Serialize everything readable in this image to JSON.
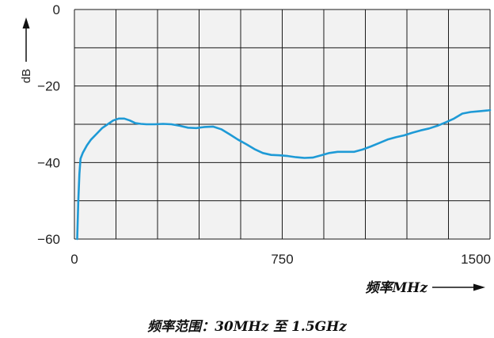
{
  "colors": {
    "plot_bg": "#f2f2f2",
    "grid": "#1a1a1a",
    "line": "#1e9ad6",
    "text": "#222222"
  },
  "chart_data": {
    "type": "line",
    "xlabel": "频率MHz",
    "ylabel": "dB",
    "xlim": [
      0,
      1500
    ],
    "ylim": [
      -60,
      0
    ],
    "x_ticks": [
      "0",
      "750",
      "1500"
    ],
    "y_ticks": [
      "0",
      "−20",
      "−40",
      "−60"
    ],
    "grid": true,
    "legend": "none",
    "series": [
      {
        "x": [
          10,
          14,
          18,
          22,
          30,
          45,
          60,
          80,
          100,
          120,
          140,
          160,
          180,
          200,
          220,
          240,
          260,
          290,
          320,
          350,
          380,
          410,
          440,
          470,
          500,
          530,
          560,
          590,
          620,
          650,
          680,
          710,
          740,
          770,
          800,
          830,
          860,
          890,
          920,
          950,
          980,
          1010,
          1040,
          1070,
          1100,
          1130,
          1160,
          1190,
          1220,
          1250,
          1280,
          1310,
          1340,
          1370,
          1400,
          1430,
          1460,
          1490,
          1500
        ],
        "y": [
          -60,
          -50,
          -43,
          -39,
          -37.5,
          -35.5,
          -34,
          -32.5,
          -31,
          -30,
          -29,
          -28.5,
          -28.5,
          -29,
          -29.7,
          -29.9,
          -30,
          -30,
          -29.9,
          -30,
          -30.4,
          -30.9,
          -31,
          -30.7,
          -30.6,
          -31.3,
          -32.6,
          -34,
          -35.2,
          -36.5,
          -37.5,
          -38,
          -38.1,
          -38.3,
          -38.6,
          -38.8,
          -38.7,
          -38.1,
          -37.5,
          -37.2,
          -37.2,
          -37.2,
          -36.6,
          -35.8,
          -34.9,
          -34,
          -33.4,
          -32.9,
          -32.2,
          -31.6,
          -31.1,
          -30.4,
          -29.5,
          -28.5,
          -27.2,
          -26.8,
          -26.6,
          -26.4,
          -26.3
        ]
      }
    ]
  },
  "caption": "频率范围：30MHz 至 1.5GHz"
}
